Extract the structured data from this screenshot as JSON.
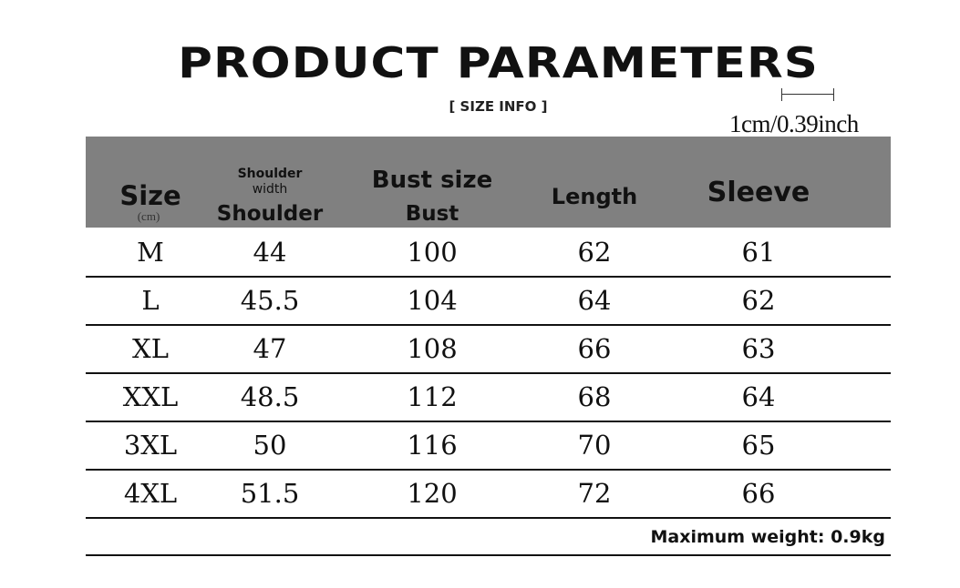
{
  "title": "PRODUCT PARAMETERS",
  "subtitle": "[ SIZE  INFO ]",
  "unit_note": "1cm/0.39inch",
  "header": {
    "size": "Size",
    "size_unit": "(cm)",
    "shoulder_small": "Shoulder",
    "shoulder_small2": "width",
    "shoulder": "Shoulder",
    "bust_size": "Bust size",
    "bust": "Bust",
    "length": "Length",
    "sleeve": "Sleeve"
  },
  "header_bg": "#808080",
  "rows": [
    [
      "M",
      "44",
      "100",
      "62",
      "61"
    ],
    [
      "L",
      "45.5",
      "104",
      "64",
      "62"
    ],
    [
      "XL",
      "47",
      "108",
      "66",
      "63"
    ],
    [
      "XXL",
      "48.5",
      "112",
      "68",
      "64"
    ],
    [
      "3XL",
      "50",
      "116",
      "70",
      "65"
    ],
    [
      "4XL",
      "51.5",
      "120",
      "72",
      "66"
    ]
  ],
  "footer": "Maximum weight: 0.9kg"
}
